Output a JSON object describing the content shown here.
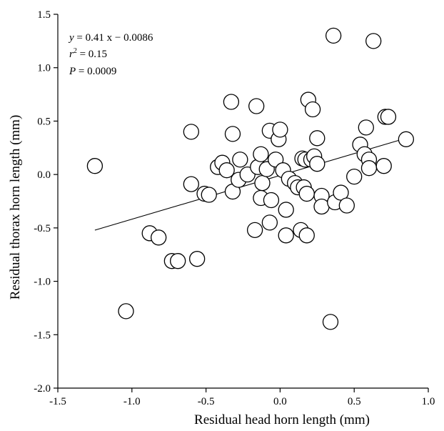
{
  "chart_data": {
    "type": "scatter",
    "xlabel": "Residual head horn length (mm)",
    "ylabel": "Residual thorax horn length (mm)",
    "xlim": [
      -1.5,
      1.0
    ],
    "ylim": [
      -2.0,
      1.5
    ],
    "xticks": [
      "-1.5",
      "-1.0",
      "-0.5",
      "0.0",
      "0.5",
      "1.0"
    ],
    "yticks": [
      "-2.0",
      "-1.5",
      "-1.0",
      "-0.5",
      "0.0",
      "0.5",
      "1.0",
      "1.5"
    ],
    "xtick_values": [
      -1.5,
      -1.0,
      -0.5,
      0.0,
      0.5,
      1.0
    ],
    "ytick_values": [
      -2.0,
      -1.5,
      -1.0,
      -0.5,
      0.0,
      0.5,
      1.0,
      1.5
    ],
    "grid": false,
    "regression": {
      "slope": 0.41,
      "intercept": -0.0086,
      "x_range": [
        -1.25,
        0.85
      ]
    },
    "annotation": {
      "line1_var": "y",
      "line1_rest": " = 0.41 x − 0.0086",
      "line2_var": "r",
      "line2_sup": "2",
      "line2_rest": " = 0.15",
      "line3_var": "P",
      "line3_rest": " = 0.0009"
    },
    "points": [
      {
        "x": -1.25,
        "y": 0.08
      },
      {
        "x": -1.04,
        "y": -1.28
      },
      {
        "x": -0.88,
        "y": -0.55
      },
      {
        "x": -0.82,
        "y": -0.59
      },
      {
        "x": -0.73,
        "y": -0.81
      },
      {
        "x": -0.69,
        "y": -0.81
      },
      {
        "x": -0.56,
        "y": -0.79
      },
      {
        "x": -0.6,
        "y": 0.4
      },
      {
        "x": -0.6,
        "y": -0.09
      },
      {
        "x": -0.51,
        "y": -0.18
      },
      {
        "x": -0.48,
        "y": -0.19
      },
      {
        "x": -0.42,
        "y": 0.07
      },
      {
        "x": -0.39,
        "y": 0.11
      },
      {
        "x": -0.36,
        "y": 0.04
      },
      {
        "x": -0.33,
        "y": 0.68
      },
      {
        "x": -0.32,
        "y": 0.38
      },
      {
        "x": -0.32,
        "y": -0.16
      },
      {
        "x": -0.28,
        "y": -0.05
      },
      {
        "x": -0.27,
        "y": 0.14
      },
      {
        "x": -0.22,
        "y": 0.0
      },
      {
        "x": -0.16,
        "y": 0.64
      },
      {
        "x": -0.17,
        "y": -0.52
      },
      {
        "x": -0.15,
        "y": 0.07
      },
      {
        "x": -0.13,
        "y": 0.19
      },
      {
        "x": -0.13,
        "y": -0.22
      },
      {
        "x": -0.12,
        "y": -0.08
      },
      {
        "x": -0.09,
        "y": 0.05
      },
      {
        "x": -0.07,
        "y": 0.41
      },
      {
        "x": -0.07,
        "y": -0.45
      },
      {
        "x": -0.06,
        "y": -0.24
      },
      {
        "x": -0.03,
        "y": 0.14
      },
      {
        "x": -0.01,
        "y": 0.33
      },
      {
        "x": 0.0,
        "y": 0.42
      },
      {
        "x": 0.02,
        "y": 0.04
      },
      {
        "x": 0.04,
        "y": -0.57
      },
      {
        "x": 0.04,
        "y": -0.33
      },
      {
        "x": 0.06,
        "y": -0.04
      },
      {
        "x": 0.1,
        "y": -0.08
      },
      {
        "x": 0.12,
        "y": -0.12
      },
      {
        "x": 0.14,
        "y": -0.52
      },
      {
        "x": 0.15,
        "y": 0.15
      },
      {
        "x": 0.16,
        "y": -0.12
      },
      {
        "x": 0.17,
        "y": 0.14
      },
      {
        "x": 0.18,
        "y": -0.18
      },
      {
        "x": 0.18,
        "y": -0.57
      },
      {
        "x": 0.19,
        "y": 0.7
      },
      {
        "x": 0.21,
        "y": 0.14
      },
      {
        "x": 0.22,
        "y": 0.61
      },
      {
        "x": 0.23,
        "y": 0.17
      },
      {
        "x": 0.25,
        "y": 0.1
      },
      {
        "x": 0.25,
        "y": 0.34
      },
      {
        "x": 0.28,
        "y": -0.2
      },
      {
        "x": 0.28,
        "y": -0.3
      },
      {
        "x": 0.34,
        "y": -1.38
      },
      {
        "x": 0.36,
        "y": 1.3
      },
      {
        "x": 0.37,
        "y": -0.26
      },
      {
        "x": 0.41,
        "y": -0.17
      },
      {
        "x": 0.45,
        "y": -0.29
      },
      {
        "x": 0.5,
        "y": -0.02
      },
      {
        "x": 0.54,
        "y": 0.28
      },
      {
        "x": 0.57,
        "y": 0.19
      },
      {
        "x": 0.58,
        "y": 0.44
      },
      {
        "x": 0.6,
        "y": 0.14
      },
      {
        "x": 0.6,
        "y": 0.06
      },
      {
        "x": 0.63,
        "y": 1.25
      },
      {
        "x": 0.7,
        "y": 0.08
      },
      {
        "x": 0.71,
        "y": 0.54
      },
      {
        "x": 0.73,
        "y": 0.54
      },
      {
        "x": 0.85,
        "y": 0.33
      }
    ]
  }
}
